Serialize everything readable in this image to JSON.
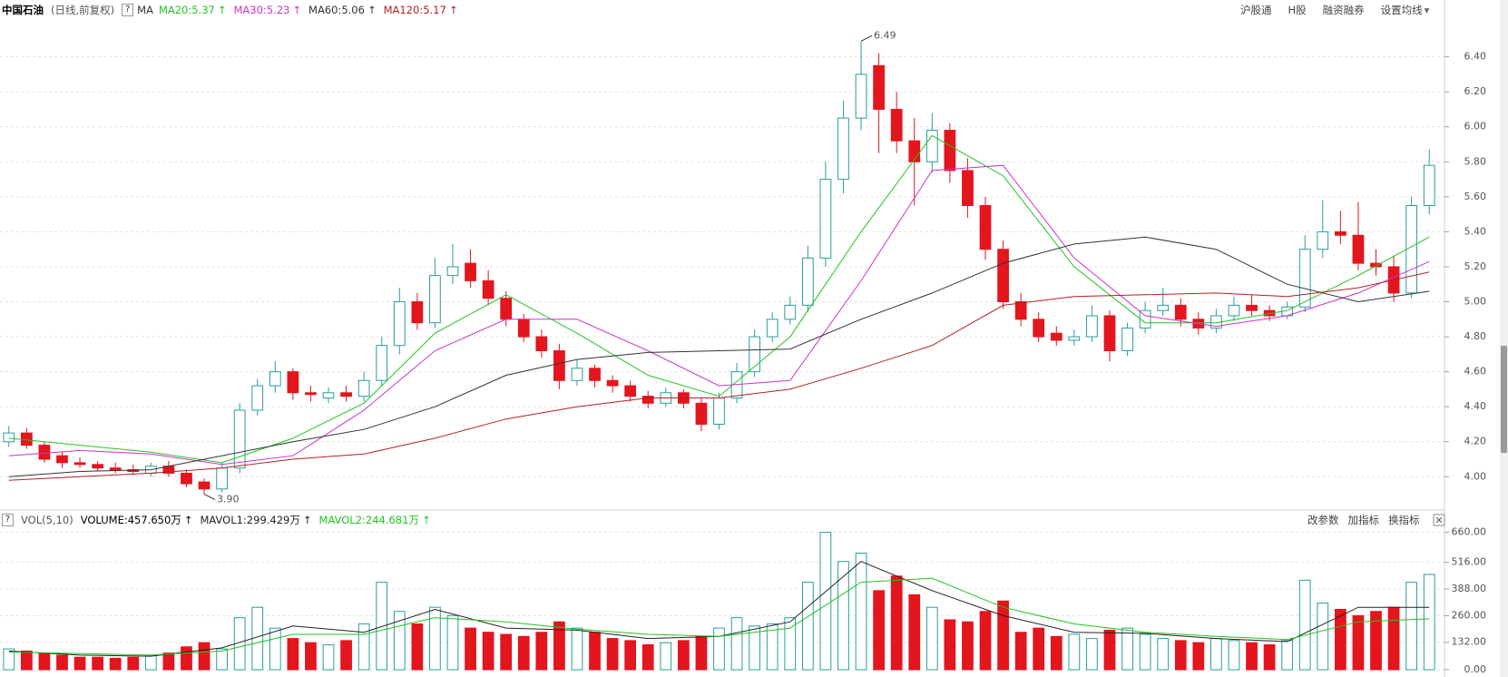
{
  "header": {
    "stock": "中国石油",
    "period": "(日线,前复权)",
    "help": "?",
    "indicator": "MA",
    "links": [
      "沪股通",
      "H股",
      "融资融券",
      "设置均线"
    ],
    "dropdown": "▾"
  },
  "chart_data": [
    {
      "type": "candlestick",
      "open": [
        4.2,
        4.25,
        4.18,
        4.12,
        4.08,
        4.07,
        4.05,
        4.04,
        4.02,
        4.06,
        4.02,
        3.97,
        3.93,
        4.05,
        4.38,
        4.52,
        4.6,
        4.48,
        4.45,
        4.48,
        4.46,
        4.55,
        4.75,
        5.0,
        4.88,
        5.15,
        5.22,
        5.12,
        5.02,
        4.9,
        4.8,
        4.72,
        4.55,
        4.62,
        4.55,
        4.52,
        4.46,
        4.42,
        4.48,
        4.42,
        4.3,
        4.45,
        4.6,
        4.8,
        4.9,
        4.98,
        5.25,
        5.7,
        6.05,
        6.35,
        6.1,
        5.92,
        5.8,
        5.98,
        5.75,
        5.55,
        5.3,
        5.0,
        4.9,
        4.82,
        4.78,
        4.8,
        4.92,
        4.72,
        4.85,
        4.95,
        4.98,
        4.9,
        4.85,
        4.92,
        4.98,
        4.95,
        4.92,
        4.97,
        5.3,
        5.4,
        5.38,
        5.22,
        5.2,
        5.05,
        5.55
      ],
      "high": [
        4.29,
        4.28,
        4.2,
        4.14,
        4.11,
        4.09,
        4.08,
        4.07,
        4.08,
        4.09,
        4.04,
        3.99,
        4.08,
        4.42,
        4.56,
        4.66,
        4.62,
        4.52,
        4.51,
        4.52,
        4.6,
        4.8,
        5.08,
        5.05,
        5.25,
        5.33,
        5.3,
        5.18,
        5.06,
        4.93,
        4.84,
        4.76,
        4.67,
        4.64,
        4.58,
        4.55,
        4.49,
        4.51,
        4.5,
        4.45,
        4.48,
        4.65,
        4.84,
        4.94,
        5.03,
        5.32,
        5.8,
        6.15,
        6.49,
        6.42,
        6.2,
        6.05,
        6.08,
        6.02,
        5.82,
        5.6,
        5.35,
        5.05,
        4.94,
        4.86,
        4.84,
        4.98,
        4.95,
        4.88,
        5.0,
        5.08,
        5.02,
        4.94,
        4.96,
        5.03,
        5.04,
        4.98,
        5.0,
        5.38,
        5.58,
        5.52,
        5.57,
        5.3,
        5.26,
        5.6,
        5.87
      ],
      "low": [
        4.17,
        4.16,
        4.08,
        4.05,
        4.05,
        4.03,
        4.02,
        4.01,
        4.0,
        4.0,
        3.94,
        3.9,
        3.91,
        4.02,
        4.35,
        4.48,
        4.44,
        4.43,
        4.42,
        4.43,
        4.43,
        4.52,
        4.7,
        4.84,
        4.85,
        5.1,
        5.08,
        4.98,
        4.86,
        4.77,
        4.68,
        4.5,
        4.52,
        4.51,
        4.48,
        4.43,
        4.39,
        4.4,
        4.39,
        4.26,
        4.27,
        4.42,
        4.57,
        4.77,
        4.87,
        4.94,
        5.2,
        5.62,
        5.98,
        5.85,
        5.85,
        5.55,
        5.74,
        5.68,
        5.48,
        5.24,
        4.96,
        4.86,
        4.77,
        4.75,
        4.75,
        4.77,
        4.66,
        4.69,
        4.82,
        4.92,
        4.86,
        4.81,
        4.82,
        4.89,
        4.92,
        4.89,
        4.9,
        4.94,
        5.25,
        5.33,
        5.18,
        5.15,
        5.0,
        5.02,
        5.5
      ],
      "close": [
        4.25,
        4.18,
        4.1,
        4.08,
        4.07,
        4.05,
        4.04,
        4.03,
        4.06,
        4.02,
        3.96,
        3.93,
        4.05,
        4.38,
        4.52,
        4.6,
        4.48,
        4.47,
        4.48,
        4.46,
        4.55,
        4.75,
        5.0,
        4.88,
        5.15,
        5.2,
        5.12,
        5.02,
        4.9,
        4.8,
        4.72,
        4.55,
        4.62,
        4.55,
        4.52,
        4.46,
        4.42,
        4.48,
        4.42,
        4.3,
        4.45,
        4.6,
        4.8,
        4.9,
        4.98,
        5.25,
        5.7,
        6.05,
        6.3,
        6.1,
        5.92,
        5.8,
        5.98,
        5.75,
        5.55,
        5.3,
        5.0,
        4.9,
        4.8,
        4.78,
        4.8,
        4.92,
        4.72,
        4.85,
        4.95,
        4.98,
        4.9,
        4.85,
        4.92,
        4.98,
        4.95,
        4.92,
        4.97,
        5.3,
        5.4,
        5.38,
        5.22,
        5.2,
        5.05,
        5.55,
        5.78
      ],
      "up_color": "#2a9d9f",
      "down_color": "#e3151d",
      "series": [
        {
          "name": "MA20:5.37",
          "arrow": "↑",
          "color": "#22c322",
          "values": [
            4.22,
            4.18,
            4.14,
            4.08,
            4.22,
            4.42,
            4.82,
            5.04,
            4.82,
            4.58,
            4.46,
            4.8,
            5.4,
            5.95,
            5.72,
            5.2,
            4.88,
            4.88,
            4.95,
            5.15,
            5.37
          ]
        },
        {
          "name": "MA30:5.23",
          "arrow": "↑",
          "color": "#cc33cc",
          "values": [
            4.12,
            4.15,
            4.13,
            4.07,
            4.12,
            4.38,
            4.72,
            4.9,
            4.9,
            4.72,
            4.52,
            4.55,
            5.12,
            5.75,
            5.78,
            5.25,
            4.92,
            4.86,
            4.92,
            5.05,
            5.23
          ]
        },
        {
          "name": "MA60:5.06",
          "arrow": "↑",
          "color": "#333333",
          "values": [
            4.0,
            4.03,
            4.04,
            4.12,
            4.2,
            4.27,
            4.4,
            4.58,
            4.67,
            4.71,
            4.72,
            4.73,
            4.9,
            5.05,
            5.22,
            5.33,
            5.37,
            5.3,
            5.1,
            5.0,
            5.06
          ]
        },
        {
          "name": "MA120:5.17",
          "arrow": "↑",
          "color": "#b22222",
          "values": [
            3.98,
            4.0,
            4.02,
            4.05,
            4.1,
            4.13,
            4.22,
            4.33,
            4.4,
            4.45,
            4.45,
            4.5,
            4.62,
            4.75,
            4.98,
            5.03,
            5.04,
            5.05,
            5.03,
            5.08,
            5.17
          ]
        }
      ],
      "annotations": [
        {
          "text": "6.49"
        },
        {
          "text": "3.90"
        }
      ],
      "ylim": [
        3.82,
        6.59
      ],
      "yticks": [
        {
          "value": 4,
          "label": "4.00"
        },
        {
          "value": 4.2,
          "label": "4.20"
        },
        {
          "value": 4.4,
          "label": "4.40"
        },
        {
          "value": 4.6,
          "label": "4.60"
        },
        {
          "value": 4.8,
          "label": "4.80"
        },
        {
          "value": 5,
          "label": "5.00"
        },
        {
          "value": 5.2,
          "label": "5.20"
        },
        {
          "value": 5.4,
          "label": "5.40"
        },
        {
          "value": 5.6,
          "label": "5.60"
        },
        {
          "value": 5.8,
          "label": "5.80"
        },
        {
          "value": 6,
          "label": "6.00"
        },
        {
          "value": 6.2,
          "label": "6.20"
        },
        {
          "value": 6.4,
          "label": "6.40"
        }
      ],
      "grid": true
    },
    {
      "type": "bar",
      "title": "VOL(5,10)",
      "help": "?",
      "name": "VOLUME:457.650万",
      "arrow": "↑",
      "values": [
        100,
        90,
        80,
        70,
        60,
        60,
        55,
        60,
        70,
        80,
        110,
        130,
        100,
        250,
        300,
        200,
        150,
        130,
        120,
        140,
        220,
        420,
        280,
        220,
        300,
        260,
        200,
        180,
        170,
        160,
        180,
        230,
        200,
        180,
        150,
        140,
        120,
        130,
        140,
        160,
        200,
        250,
        210,
        220,
        250,
        420,
        660,
        520,
        560,
        380,
        450,
        360,
        300,
        240,
        230,
        280,
        330,
        180,
        200,
        160,
        170,
        150,
        190,
        200,
        170,
        150,
        140,
        130,
        150,
        140,
        130,
        120,
        140,
        430,
        320,
        290,
        260,
        280,
        300,
        420,
        457.65
      ],
      "series": [
        {
          "name": "MAVOL1:299.429万",
          "arrow": "↑",
          "color": "#222222",
          "values": [
            90,
            70,
            65,
            105,
            210,
            180,
            290,
            200,
            190,
            150,
            160,
            230,
            520,
            380,
            260,
            180,
            175,
            150,
            135,
            300,
            299.429
          ]
        },
        {
          "name": "MAVOL2:244.681万",
          "arrow": "↑",
          "color": "#22c322",
          "values": [
            85,
            78,
            70,
            90,
            170,
            170,
            250,
            230,
            195,
            170,
            160,
            200,
            420,
            440,
            300,
            220,
            180,
            160,
            145,
            230,
            244.681
          ]
        }
      ],
      "tools": [
        "改参数",
        "加指标",
        "换指标"
      ],
      "ylim": [
        0,
        680
      ],
      "yticks": [
        {
          "value": 0,
          "label": "0.00"
        },
        {
          "value": 132,
          "label": "132.00"
        },
        {
          "value": 260,
          "label": "260.00"
        },
        {
          "value": 388,
          "label": "388.00"
        },
        {
          "value": 516,
          "label": "516.00"
        },
        {
          "value": 660,
          "label": "660.00"
        }
      ],
      "grid": true
    }
  ]
}
